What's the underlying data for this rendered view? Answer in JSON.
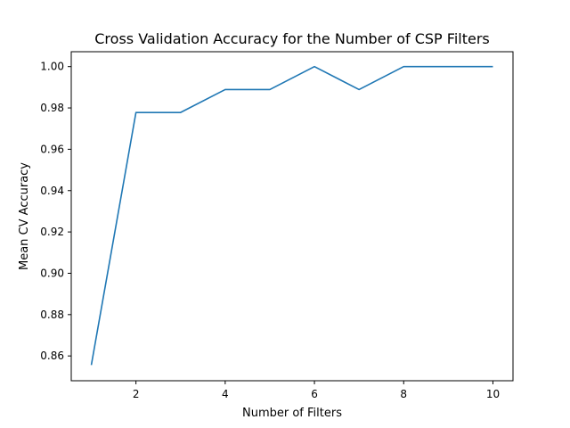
{
  "chart_data": {
    "type": "line",
    "title": "Cross Validation Accuracy for the Number of CSP Filters",
    "xlabel": "Number of Filters",
    "ylabel": "Mean CV Accuracy",
    "xlim": [
      0.55,
      10.45
    ],
    "ylim": [
      0.848,
      1.0072
    ],
    "xticks": [
      2,
      4,
      6,
      8,
      10
    ],
    "xtick_labels": [
      "2",
      "4",
      "6",
      "8",
      "10"
    ],
    "yticks": [
      0.86,
      0.88,
      0.9,
      0.92,
      0.94,
      0.96,
      0.98,
      1.0
    ],
    "ytick_labels": [
      "0.86",
      "0.88",
      "0.90",
      "0.92",
      "0.94",
      "0.96",
      "0.98",
      "1.00"
    ],
    "grid": false,
    "legend": "none",
    "series": [
      {
        "color": "#1f77b4",
        "x": [
          1,
          2,
          3,
          4,
          5,
          6,
          7,
          8,
          9,
          10
        ],
        "y": [
          0.8556,
          0.9778,
          0.9778,
          0.9889,
          0.9889,
          1.0,
          0.9889,
          1.0,
          1.0,
          1.0
        ]
      }
    ]
  }
}
